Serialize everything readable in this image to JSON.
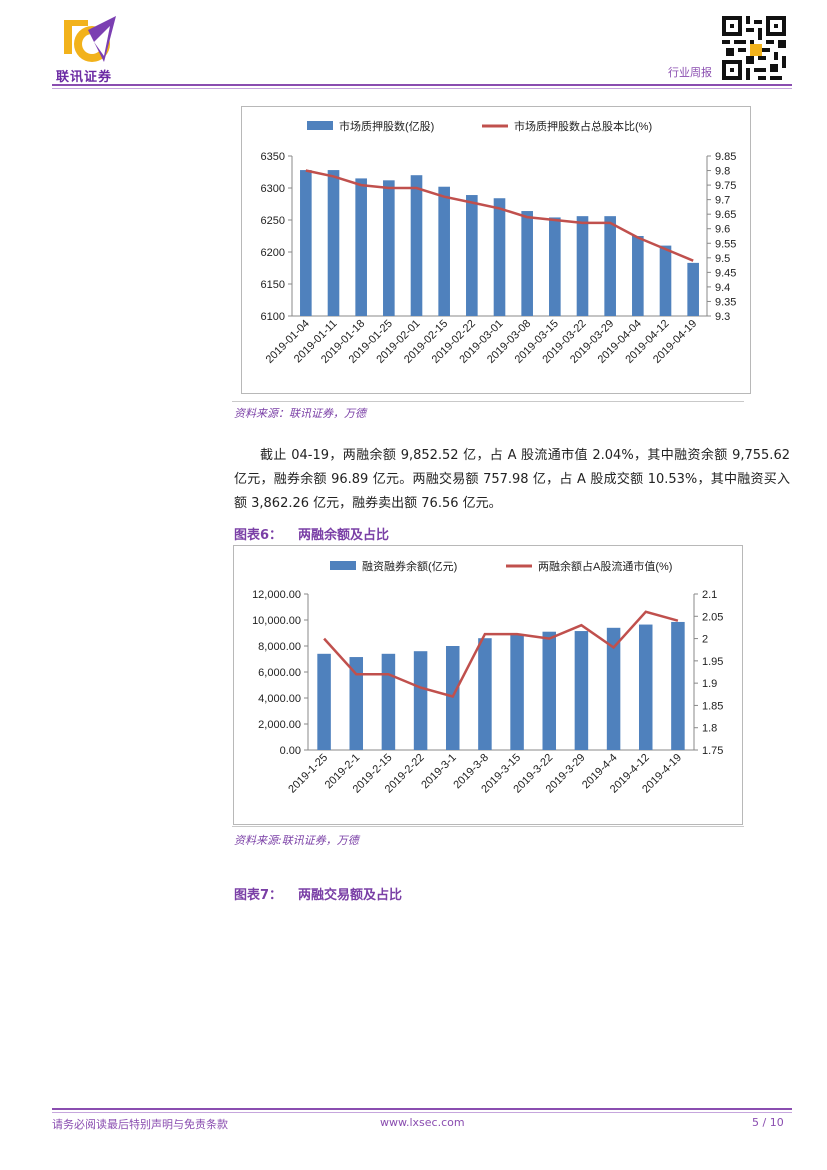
{
  "header": {
    "brand_name": "联讯证券",
    "doc_type": "行业周报"
  },
  "chart1": {
    "source": "资料来源：联讯证券，万德",
    "chart_data": {
      "type": "bar",
      "categories": [
        "2019-01-04",
        "2019-01-11",
        "2019-01-18",
        "2019-01-25",
        "2019-02-01",
        "2019-02-15",
        "2019-02-22",
        "2019-03-01",
        "2019-03-08",
        "2019-03-15",
        "2019-03-22",
        "2019-03-29",
        "2019-04-04",
        "2019-04-12",
        "2019-04-19"
      ],
      "series": [
        {
          "name": "市场质押股数(亿股)",
          "type": "bar",
          "axis": "left",
          "values": [
            6328,
            6328,
            6315,
            6312,
            6320,
            6302,
            6289,
            6284,
            6264,
            6254,
            6256,
            6256,
            6225,
            6210,
            6183
          ]
        },
        {
          "name": "市场质押股数占总股本比(%)",
          "type": "line",
          "axis": "right",
          "values": [
            9.8,
            9.78,
            9.75,
            9.74,
            9.74,
            9.71,
            9.69,
            9.67,
            9.64,
            9.63,
            9.62,
            9.62,
            9.57,
            9.53,
            9.49
          ]
        }
      ],
      "ylim_left": [
        6100,
        6350
      ],
      "ylim_right": [
        9.3,
        9.85
      ],
      "yticks_left": [
        "6350",
        "6300",
        "6250",
        "6200",
        "6150",
        "6100"
      ],
      "yticks_right": [
        "9.85",
        "9.8",
        "9.75",
        "9.7",
        "9.65",
        "9.6",
        "9.55",
        "9.5",
        "9.45",
        "9.4",
        "9.35",
        "9.3"
      ],
      "bar_color": "#4f81bd",
      "line_color": "#c0504d",
      "legend": "top"
    }
  },
  "paragraph": "截止 04-19，两融余额 9,852.52 亿，占 A 股流通市值 2.04%，其中融资余额 9,755.62 亿元，融券余额 96.89 亿元。两融交易额 757.98 亿，占 A 股成交额 10.53%，其中融资买入额 3,862.26 亿元，融券卖出额 76.56 亿元。",
  "figure6": {
    "number": "图表6：",
    "title": "两融余额及占比",
    "source": "资料来源:联讯证券，万德",
    "chart_data": {
      "type": "bar",
      "categories": [
        "2019-1-25",
        "2019-2-1",
        "2019-2-15",
        "2019-2-22",
        "2019-3-1",
        "2019-3-8",
        "2019-3-15",
        "2019-3-22",
        "2019-3-29",
        "2019-4-4",
        "2019-4-12",
        "2019-4-19"
      ],
      "series": [
        {
          "name": "融资融券余额(亿元)",
          "type": "bar",
          "axis": "left",
          "values": [
            7400,
            7150,
            7400,
            7600,
            8000,
            8600,
            8900,
            9100,
            9150,
            9400,
            9650,
            9850
          ]
        },
        {
          "name": "两融余额占A股流通市值(%)",
          "type": "line",
          "axis": "right",
          "values": [
            2.0,
            1.92,
            1.92,
            1.89,
            1.87,
            2.01,
            2.01,
            2.0,
            2.03,
            1.98,
            2.06,
            2.04
          ]
        }
      ],
      "ylim_left": [
        0,
        12000
      ],
      "ylim_right": [
        1.75,
        2.1
      ],
      "yticks_left": [
        "12,000.00",
        "10,000.00",
        "8,000.00",
        "6,000.00",
        "4,000.00",
        "2,000.00",
        "0.00"
      ],
      "yticks_right": [
        "2.1",
        "2.05",
        "2",
        "1.95",
        "1.9",
        "1.85",
        "1.8",
        "1.75"
      ],
      "bar_color": "#4f81bd",
      "line_color": "#c0504d",
      "legend": "top"
    }
  },
  "figure7": {
    "number": "图表7：",
    "title": "两融交易额及占比"
  },
  "footer": {
    "disclaimer": "请务必阅读最后特别声明与免责条款",
    "website": "www.lxsec.com",
    "page": "5 / 10"
  }
}
